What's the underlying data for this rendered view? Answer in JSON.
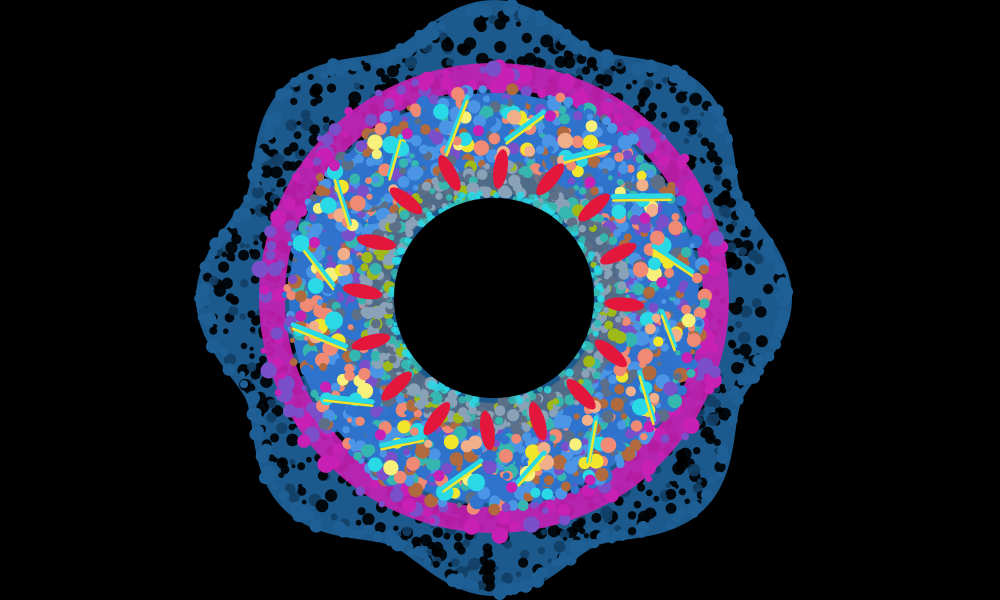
{
  "image": {
    "subject": "nuclear-pore-complex-molecular-illustration",
    "symmetry_fold": 8,
    "background_color": "#000000"
  },
  "palette": {
    "outer_scaffold": "#1e5f95",
    "outer_scaffold_dark": "#123f66",
    "magenta": "#c81fb4",
    "purple": "#7a4fc9",
    "royal_blue": "#2f74cf",
    "sky_blue": "#4b95e6",
    "teal": "#35b7b0",
    "cyan": "#29d9e6",
    "yellow": "#f2e62c",
    "light_yellow": "#f7f07a",
    "salmon": "#f08a74",
    "peach": "#f2b08a",
    "red": "#e4163b",
    "olive": "#9fba18",
    "brown": "#b06a3e",
    "grey_blue": "#8aa2b8",
    "slate": "#5d6f86"
  }
}
